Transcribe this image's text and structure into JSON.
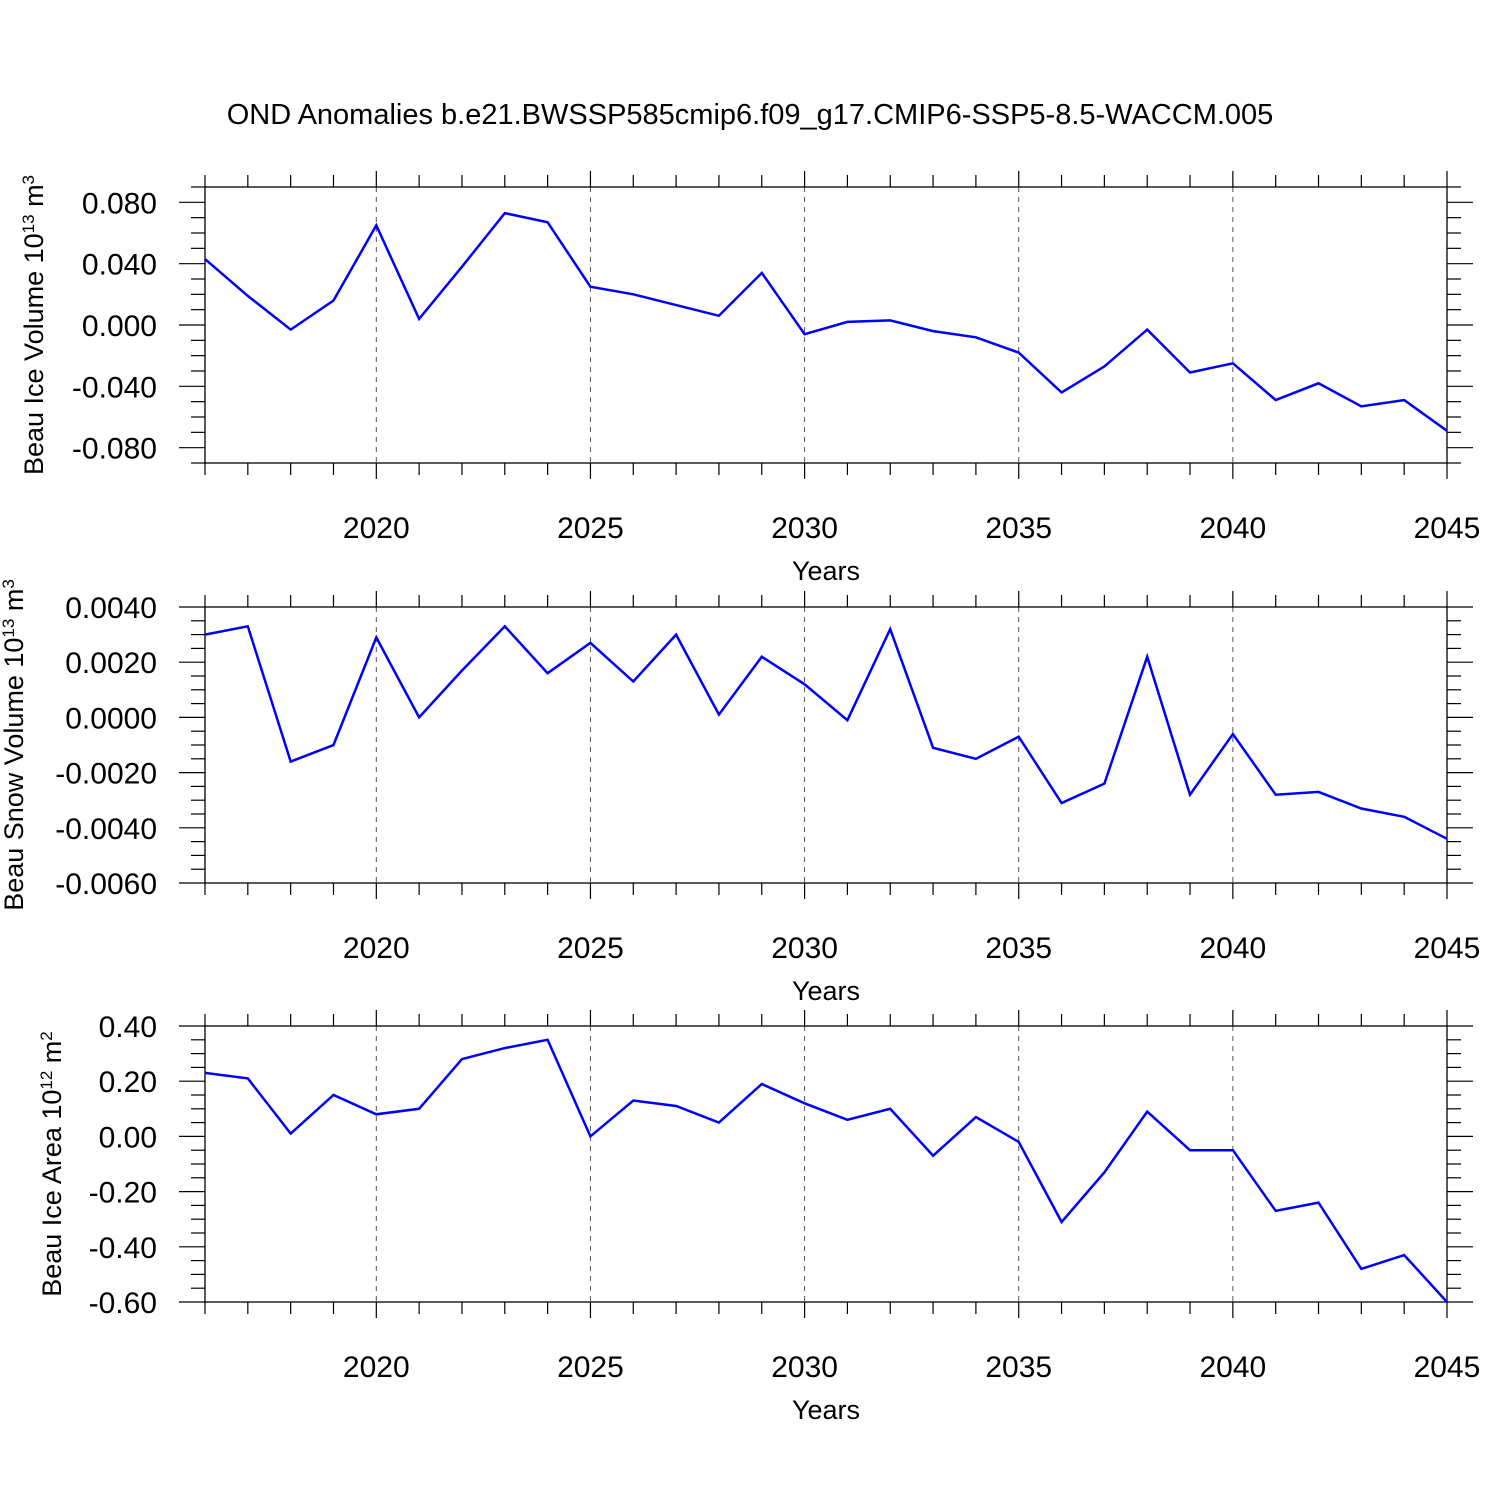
{
  "title": "OND Anomalies b.e21.BWSSP585cmip6.f09_g17.CMIP6-SSP5-8.5-WACCM.005",
  "colors": {
    "line": "#0000ff",
    "axis": "#000000",
    "grid": "#555555"
  },
  "chart_data": [
    {
      "type": "line",
      "ylabel": {
        "main": "Beau Ice Volume 10",
        "sup": "13",
        "unit": "m",
        "unit_sup": "3"
      },
      "xlabel": "Years",
      "xlim": [
        2016,
        2045
      ],
      "ylim": [
        -0.09,
        0.09
      ],
      "x_tick_values": [
        2020,
        2025,
        2030,
        2035,
        2040,
        2045
      ],
      "x_tick_labels": [
        "2020",
        "2025",
        "2030",
        "2035",
        "2040",
        "2045"
      ],
      "y_tick_values": [
        0.08,
        0.04,
        0.0,
        -0.04,
        -0.08
      ],
      "y_tick_labels": [
        "0.080",
        "0.040",
        "0.000",
        "-0.040",
        "-0.080"
      ],
      "y_minor_step": 0.01,
      "grid": "vertical dashed at major x ticks",
      "series": [
        {
          "x": [
            2016,
            2017,
            2018,
            2019,
            2020,
            2021,
            2022,
            2023,
            2024,
            2025,
            2026,
            2027,
            2028,
            2029,
            2030,
            2031,
            2032,
            2033,
            2034,
            2035,
            2036,
            2037,
            2038,
            2039,
            2040,
            2041,
            2042,
            2043,
            2044,
            2045
          ],
          "values": [
            0.043,
            0.019,
            -0.003,
            0.016,
            0.065,
            0.004,
            0.038,
            0.073,
            0.067,
            0.025,
            0.02,
            0.013,
            0.006,
            0.034,
            -0.006,
            0.002,
            0.003,
            -0.004,
            -0.008,
            -0.018,
            -0.044,
            -0.027,
            -0.003,
            -0.031,
            -0.025,
            -0.049,
            -0.038,
            -0.053,
            -0.049,
            -0.069
          ]
        }
      ]
    },
    {
      "type": "line",
      "ylabel": {
        "main": "Beau Snow Volume 10",
        "sup": "13",
        "unit": "m",
        "unit_sup": "3"
      },
      "xlabel": "Years",
      "xlim": [
        2016,
        2045
      ],
      "ylim": [
        -0.006,
        0.004
      ],
      "x_tick_values": [
        2020,
        2025,
        2030,
        2035,
        2040,
        2045
      ],
      "x_tick_labels": [
        "2020",
        "2025",
        "2030",
        "2035",
        "2040",
        "2045"
      ],
      "y_tick_values": [
        0.004,
        0.002,
        0.0,
        -0.002,
        -0.004,
        -0.006
      ],
      "y_tick_labels": [
        "0.0040",
        "0.0020",
        "0.0000",
        "-0.0020",
        "-0.0040",
        "-0.0060"
      ],
      "y_minor_step": 0.0005,
      "grid": "vertical dashed at major x ticks",
      "series": [
        {
          "x": [
            2016,
            2017,
            2018,
            2019,
            2020,
            2021,
            2022,
            2023,
            2024,
            2025,
            2026,
            2027,
            2028,
            2029,
            2030,
            2031,
            2032,
            2033,
            2034,
            2035,
            2036,
            2037,
            2038,
            2039,
            2040,
            2041,
            2042,
            2043,
            2044,
            2045
          ],
          "values": [
            0.003,
            0.0033,
            -0.0016,
            -0.001,
            0.0029,
            0.0,
            0.0017,
            0.0033,
            0.0016,
            0.0027,
            0.0013,
            0.003,
            0.0001,
            0.0022,
            0.0012,
            -0.0001,
            0.0032,
            -0.0011,
            -0.0015,
            -0.0007,
            -0.0031,
            -0.0024,
            0.0022,
            -0.0028,
            -0.0006,
            -0.0028,
            -0.0027,
            -0.0033,
            -0.0036,
            -0.0044
          ]
        }
      ]
    },
    {
      "type": "line",
      "ylabel": {
        "main": "Beau Ice Area 10",
        "sup": "12",
        "unit": "m",
        "unit_sup": "2"
      },
      "xlabel": "Years",
      "xlim": [
        2016,
        2045
      ],
      "ylim": [
        -0.6,
        0.4
      ],
      "x_tick_values": [
        2020,
        2025,
        2030,
        2035,
        2040,
        2045
      ],
      "x_tick_labels": [
        "2020",
        "2025",
        "2030",
        "2035",
        "2040",
        "2045"
      ],
      "y_tick_values": [
        0.4,
        0.2,
        0.0,
        -0.2,
        -0.4,
        -0.6
      ],
      "y_tick_labels": [
        "0.40",
        "0.20",
        "0.00",
        "-0.20",
        "-0.40",
        "-0.60"
      ],
      "y_minor_step": 0.05,
      "grid": "vertical dashed at major x ticks",
      "series": [
        {
          "x": [
            2016,
            2017,
            2018,
            2019,
            2020,
            2021,
            2022,
            2023,
            2024,
            2025,
            2026,
            2027,
            2028,
            2029,
            2030,
            2031,
            2032,
            2033,
            2034,
            2035,
            2036,
            2037,
            2038,
            2039,
            2040,
            2041,
            2042,
            2043,
            2044,
            2045
          ],
          "values": [
            0.23,
            0.21,
            0.01,
            0.15,
            0.08,
            0.1,
            0.28,
            0.32,
            0.35,
            0.0,
            0.13,
            0.11,
            0.05,
            0.19,
            0.12,
            0.06,
            0.1,
            -0.07,
            0.07,
            -0.02,
            -0.31,
            -0.13,
            0.09,
            -0.05,
            -0.05,
            -0.27,
            -0.24,
            -0.48,
            -0.43,
            -0.6
          ]
        }
      ]
    }
  ]
}
